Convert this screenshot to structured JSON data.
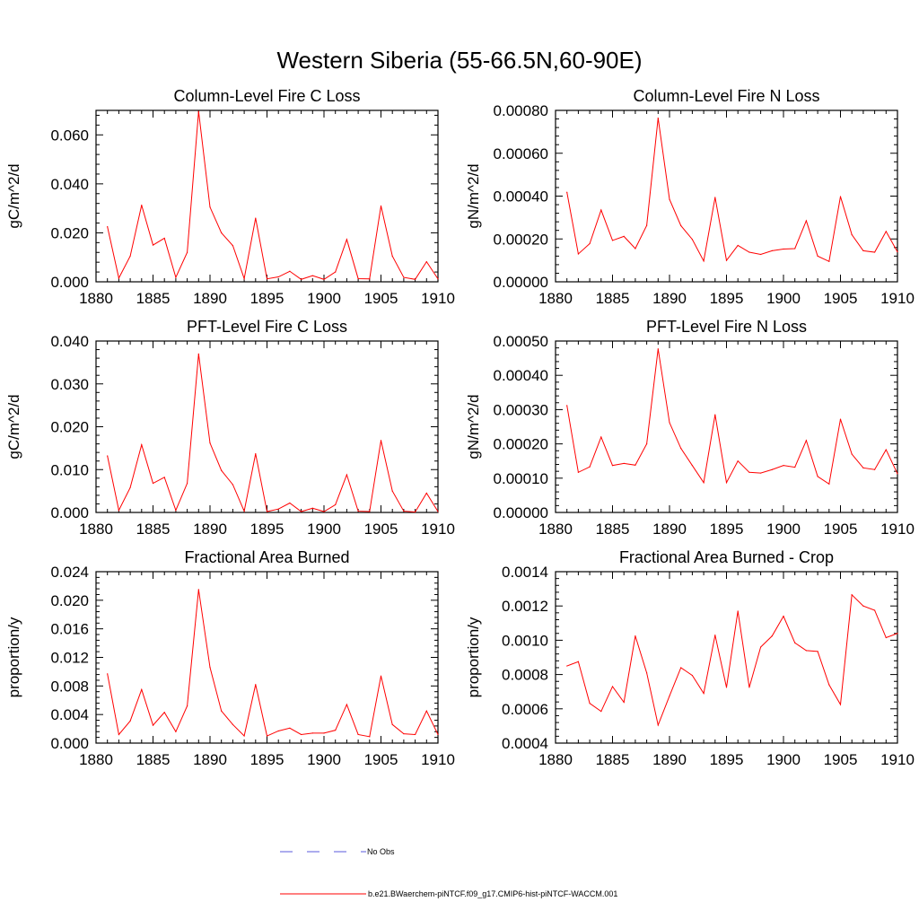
{
  "figure": {
    "title": "Western Siberia (55-66.5N,60-90E)"
  },
  "colors": {
    "model_line": "#ff0000",
    "obs_line": "#5a5adc",
    "axis": "#000000",
    "background": "#ffffff"
  },
  "legend": {
    "obs_label": "No Obs",
    "model_label": "b.e21.BWaerchem-piNTCF.f09_g17.CMIP6-hist-piNTCF-WACCM.001"
  },
  "chart_data": [
    {
      "type": "line",
      "title": "Column-Level Fire C Loss",
      "ylabel": "gC/m^2/d",
      "xlim": [
        1880,
        1910
      ],
      "ylim": [
        0,
        0.07
      ],
      "x_ticks": [
        "1880",
        "1885",
        "1890",
        "1895",
        "1900",
        "1905",
        "1910"
      ],
      "y_ticks": [
        "0.000",
        "0.020",
        "0.040",
        "0.060"
      ],
      "x": [
        1881,
        1882,
        1883,
        1884,
        1885,
        1886,
        1887,
        1888,
        1889,
        1890,
        1891,
        1892,
        1893,
        1894,
        1895,
        1896,
        1897,
        1898,
        1899,
        1900,
        1901,
        1902,
        1903,
        1904,
        1905,
        1906,
        1907,
        1908,
        1909,
        1910
      ],
      "values": [
        0.0225,
        0.0015,
        0.0105,
        0.0313,
        0.015,
        0.0178,
        0.0018,
        0.012,
        0.0696,
        0.0305,
        0.02,
        0.0148,
        0.0013,
        0.026,
        0.0012,
        0.002,
        0.0043,
        0.001,
        0.0025,
        0.001,
        0.004,
        0.0173,
        0.0013,
        0.0012,
        0.031,
        0.0105,
        0.0018,
        0.001,
        0.0082,
        0.0012
      ]
    },
    {
      "type": "line",
      "title": "Column-Level Fire N Loss",
      "ylabel": "gN/m^2/d",
      "xlim": [
        1880,
        1910
      ],
      "ylim": [
        0,
        0.0008
      ],
      "x_ticks": [
        "1880",
        "1885",
        "1890",
        "1895",
        "1900",
        "1905",
        "1910"
      ],
      "y_ticks": [
        "0.00000",
        "0.00020",
        "0.00040",
        "0.00060",
        "0.00080"
      ],
      "x": [
        1881,
        1882,
        1883,
        1884,
        1885,
        1886,
        1887,
        1888,
        1889,
        1890,
        1891,
        1892,
        1893,
        1894,
        1895,
        1896,
        1897,
        1898,
        1899,
        1900,
        1901,
        1902,
        1903,
        1904,
        1905,
        1906,
        1907,
        1908,
        1909,
        1910
      ],
      "values": [
        0.000418,
        0.00013,
        0.000178,
        0.000335,
        0.000193,
        0.000212,
        0.000155,
        0.000263,
        0.000764,
        0.000385,
        0.000262,
        0.000198,
        9.7e-05,
        0.000394,
        0.0001,
        0.00017,
        0.000138,
        0.000128,
        0.000145,
        0.000153,
        0.000155,
        0.000285,
        0.00012,
        9.5e-05,
        0.000398,
        0.00022,
        0.000145,
        0.000138,
        0.000235,
        0.00014
      ]
    },
    {
      "type": "line",
      "title": "PFT-Level Fire C Loss",
      "ylabel": "gC/m^2/d",
      "xlim": [
        1880,
        1910
      ],
      "ylim": [
        0,
        0.04
      ],
      "x_ticks": [
        "1880",
        "1885",
        "1890",
        "1895",
        "1900",
        "1905",
        "1910"
      ],
      "y_ticks": [
        "0.000",
        "0.010",
        "0.020",
        "0.030",
        "0.040"
      ],
      "x": [
        1881,
        1882,
        1883,
        1884,
        1885,
        1886,
        1887,
        1888,
        1889,
        1890,
        1891,
        1892,
        1893,
        1894,
        1895,
        1896,
        1897,
        1898,
        1899,
        1900,
        1901,
        1902,
        1903,
        1904,
        1905,
        1906,
        1907,
        1908,
        1909,
        1910
      ],
      "values": [
        0.0132,
        0.0005,
        0.0058,
        0.0158,
        0.0068,
        0.0082,
        0.0005,
        0.0068,
        0.037,
        0.0162,
        0.0098,
        0.0065,
        0.0003,
        0.0137,
        0.0002,
        0.0008,
        0.0022,
        0.0002,
        0.001,
        0.0002,
        0.0018,
        0.0088,
        0.0003,
        0.0002,
        0.0168,
        0.005,
        0.0003,
        0.0001,
        0.0045,
        0.0002
      ]
    },
    {
      "type": "line",
      "title": "PFT-Level Fire N Loss",
      "ylabel": "gN/m^2/d",
      "xlim": [
        1880,
        1910
      ],
      "ylim": [
        0,
        0.0005
      ],
      "x_ticks": [
        "1880",
        "1885",
        "1890",
        "1895",
        "1900",
        "1905",
        "1910"
      ],
      "y_ticks": [
        "0.00000",
        "0.00010",
        "0.00020",
        "0.00030",
        "0.00040",
        "0.00050"
      ],
      "x": [
        1881,
        1882,
        1883,
        1884,
        1885,
        1886,
        1887,
        1888,
        1889,
        1890,
        1891,
        1892,
        1893,
        1894,
        1895,
        1896,
        1897,
        1898,
        1899,
        1900,
        1901,
        1902,
        1903,
        1904,
        1905,
        1906,
        1907,
        1908,
        1909,
        1910
      ],
      "values": [
        0.000312,
        0.000117,
        0.000133,
        0.00022,
        0.000137,
        0.000143,
        0.000138,
        0.0002,
        0.000477,
        0.000262,
        0.000187,
        0.000137,
        8.7e-05,
        0.000285,
        8.7e-05,
        0.00015,
        0.000117,
        0.000115,
        0.000125,
        0.000137,
        0.000132,
        0.00021,
        0.000105,
        8.3e-05,
        0.000272,
        0.00017,
        0.00013,
        0.000125,
        0.000183,
        0.000113
      ]
    },
    {
      "type": "line",
      "title": "Fractional Area Burned",
      "ylabel": "proportion/y",
      "xlim": [
        1880,
        1910
      ],
      "ylim": [
        0,
        0.024
      ],
      "x_ticks": [
        "1880",
        "1885",
        "1890",
        "1895",
        "1900",
        "1905",
        "1910"
      ],
      "y_ticks": [
        "0.000",
        "0.004",
        "0.008",
        "0.012",
        "0.016",
        "0.020",
        "0.024"
      ],
      "x": [
        1881,
        1882,
        1883,
        1884,
        1885,
        1886,
        1887,
        1888,
        1889,
        1890,
        1891,
        1892,
        1893,
        1894,
        1895,
        1896,
        1897,
        1898,
        1899,
        1900,
        1901,
        1902,
        1903,
        1904,
        1905,
        1906,
        1907,
        1908,
        1909,
        1910
      ],
      "values": [
        0.0097,
        0.0012,
        0.0031,
        0.0075,
        0.0025,
        0.0043,
        0.0016,
        0.0052,
        0.0215,
        0.0106,
        0.0045,
        0.0026,
        0.001,
        0.0082,
        0.001,
        0.0017,
        0.0021,
        0.0012,
        0.0014,
        0.0014,
        0.0018,
        0.0054,
        0.0012,
        0.0009,
        0.0094,
        0.0026,
        0.0013,
        0.0012,
        0.0045,
        0.0012
      ]
    },
    {
      "type": "line",
      "title": "Fractional Area Burned - Crop",
      "ylabel": "proportion/y",
      "xlim": [
        1880,
        1910
      ],
      "ylim": [
        0.0004,
        0.0014
      ],
      "x_ticks": [
        "1880",
        "1885",
        "1890",
        "1895",
        "1900",
        "1905",
        "1910"
      ],
      "y_ticks": [
        "0.0004",
        "0.0006",
        "0.0008",
        "0.0010",
        "0.0012",
        "0.0014"
      ],
      "x": [
        1881,
        1882,
        1883,
        1884,
        1885,
        1886,
        1887,
        1888,
        1889,
        1890,
        1891,
        1892,
        1893,
        1894,
        1895,
        1896,
        1897,
        1898,
        1899,
        1900,
        1901,
        1902,
        1903,
        1904,
        1905,
        1906,
        1907,
        1908,
        1909,
        1910
      ],
      "values": [
        0.00085,
        0.000875,
        0.000632,
        0.000585,
        0.00073,
        0.000638,
        0.001025,
        0.00081,
        0.000505,
        0.000675,
        0.00084,
        0.000795,
        0.00069,
        0.00103,
        0.000725,
        0.00117,
        0.000725,
        0.00096,
        0.001025,
        0.00114,
        0.000985,
        0.00094,
        0.000935,
        0.00074,
        0.000625,
        0.001265,
        0.0012,
        0.001175,
        0.001015,
        0.00104
      ]
    }
  ]
}
